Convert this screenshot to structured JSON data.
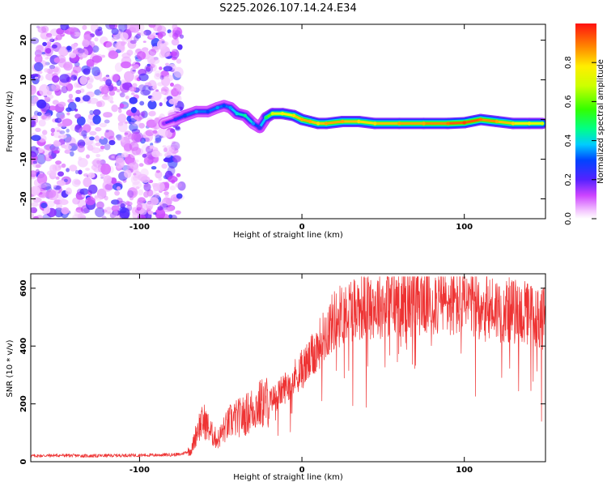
{
  "chart_data": [
    {
      "type": "heatmap",
      "title": "S225.2026.107.14.24.E34",
      "xlabel": "Height of straight line (km)",
      "ylabel": "Frequency (Hz)",
      "xlim": [
        -167,
        150
      ],
      "ylim": [
        -25,
        24
      ],
      "xticks": [
        -100,
        0,
        100
      ],
      "yticks": [
        -20,
        -10,
        0,
        10,
        20
      ],
      "colorbar": {
        "label": "Normalized spectral amplitude",
        "range": [
          0,
          1
        ],
        "ticks": [
          "0.0",
          "0.2",
          "0.4",
          "0.6",
          "0.8"
        ],
        "colormap": "rainbow (violet → red)"
      },
      "ridge": {
        "description": "Dominant-frequency ridge of the spectrum vs height",
        "x": [
          -85,
          -78,
          -72,
          -65,
          -58,
          -52,
          -48,
          -44,
          -40,
          -35,
          -30,
          -26,
          -22,
          -18,
          -12,
          -5,
          0,
          5,
          10,
          15,
          25,
          35,
          45,
          60,
          75,
          90,
          100,
          110,
          120,
          130,
          140,
          148
        ],
        "freq": [
          -1,
          0,
          1,
          2,
          2,
          3,
          3.5,
          3,
          1.5,
          1,
          -1,
          -2,
          0.5,
          1.5,
          1.5,
          1,
          0,
          -0.5,
          -1,
          -1,
          -0.5,
          -0.5,
          -1,
          -1,
          -1,
          -1,
          -0.8,
          0,
          -0.5,
          -1,
          -1,
          -1
        ],
        "amplitude": [
          0.15,
          0.25,
          0.3,
          0.35,
          0.3,
          0.35,
          0.3,
          0.35,
          0.4,
          0.45,
          0.35,
          0.25,
          0.5,
          0.7,
          0.75,
          0.8,
          0.85,
          0.85,
          0.8,
          0.85,
          0.85,
          0.8,
          0.8,
          0.85,
          0.85,
          0.9,
          0.95,
          0.9,
          0.85,
          0.8,
          0.75,
          0.7
        ]
      },
      "noise_region": {
        "description": "Scattered low-amplitude noise at heights below about -80 km",
        "x_range": [
          -167,
          -80
        ],
        "freq_range": [
          -25,
          24
        ]
      }
    },
    {
      "type": "line",
      "title": "",
      "xlabel": "Height of straight line (km)",
      "ylabel": "SNR (10 * v/v)",
      "xlim": [
        -167,
        150
      ],
      "ylim": [
        0,
        650
      ],
      "xticks": [
        -100,
        0,
        100
      ],
      "yticks": [
        0,
        200,
        400,
        600
      ],
      "color": "#ee3333",
      "series": [
        {
          "name": "SNR",
          "x": [
            -167,
            -150,
            -130,
            -110,
            -90,
            -75,
            -68,
            -64,
            -60,
            -56,
            -52,
            -48,
            -44,
            -40,
            -35,
            -30,
            -25,
            -20,
            -15,
            -10,
            -5,
            0,
            5,
            10,
            15,
            20,
            30,
            40,
            50,
            60,
            70,
            80,
            90,
            100,
            110,
            120,
            130,
            140,
            150
          ],
          "y": [
            20,
            22,
            20,
            22,
            23,
            25,
            40,
            120,
            140,
            100,
            75,
            110,
            140,
            150,
            160,
            185,
            200,
            210,
            230,
            260,
            290,
            320,
            350,
            400,
            450,
            490,
            530,
            540,
            545,
            550,
            555,
            560,
            550,
            545,
            540,
            530,
            520,
            510,
            495
          ]
        }
      ]
    }
  ]
}
